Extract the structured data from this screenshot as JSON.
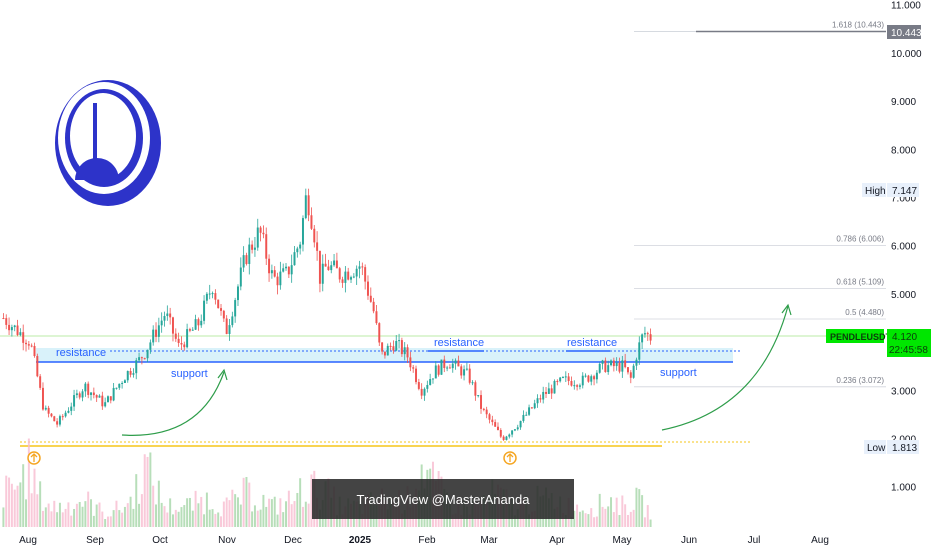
{
  "chart_data": {
    "type": "candlestick",
    "symbol": "PENDLEUSDT",
    "last_price": "4.120",
    "countdown": "22:45:58",
    "watermark": "TradingView @MasterAnanda",
    "y_axis": {
      "ticks": [
        "11.000",
        "10.000",
        "9.000",
        "8.000",
        "7.000",
        "6.000",
        "5.000",
        "4.000",
        "3.000",
        "2.000",
        "1.000"
      ],
      "range": [
        0,
        11.5
      ]
    },
    "x_axis": {
      "labels": [
        "Aug",
        "Sep",
        "Oct",
        "Nov",
        "Dec",
        "2025",
        "Feb",
        "Mar",
        "Apr",
        "May",
        "Jun",
        "Jul",
        "Aug"
      ]
    },
    "high": {
      "label": "High",
      "value": "7.147"
    },
    "low": {
      "label": "Low",
      "value": "1.813"
    },
    "fib_levels": [
      {
        "label": "1.618 (10.443)",
        "value": 10.443
      },
      {
        "label": "0.786 (6.006)",
        "value": 6.006
      },
      {
        "label": "0.618 (5.109)",
        "value": 5.109
      },
      {
        "label": "0.5 (4.480)",
        "value": 4.48
      },
      {
        "label": "0.236 (3.072)",
        "value": 3.072
      }
    ],
    "fib_price_tag": "10.443",
    "annotations": {
      "resistance": "resistance",
      "support": "support"
    },
    "price_path": [
      [
        0,
        4.5
      ],
      [
        4,
        4.0
      ],
      [
        6,
        2.6
      ],
      [
        8,
        2.3
      ],
      [
        10,
        2.7
      ],
      [
        12,
        3.1
      ],
      [
        15,
        2.7
      ],
      [
        18,
        3.3
      ],
      [
        20,
        3.6
      ],
      [
        21,
        3.8
      ],
      [
        24,
        4.6
      ],
      [
        26,
        3.9
      ],
      [
        29,
        4.4
      ],
      [
        31,
        5.2
      ],
      [
        33,
        4.2
      ],
      [
        36,
        5.8
      ],
      [
        38,
        6.3
      ],
      [
        40,
        5.3
      ],
      [
        42,
        5.4
      ],
      [
        44,
        6.1
      ],
      [
        45,
        7.1
      ],
      [
        46,
        6.4
      ],
      [
        47,
        5.3
      ],
      [
        48,
        5.6
      ],
      [
        50,
        5.4
      ],
      [
        53,
        5.6
      ],
      [
        55,
        4.6
      ],
      [
        56,
        3.7
      ],
      [
        58,
        4.0
      ],
      [
        60,
        3.7
      ],
      [
        62,
        3.0
      ],
      [
        64,
        3.4
      ],
      [
        66,
        3.6
      ],
      [
        69,
        3.3
      ],
      [
        71,
        2.6
      ],
      [
        74,
        2.0
      ],
      [
        77,
        2.4
      ],
      [
        80,
        2.9
      ],
      [
        83,
        3.2
      ],
      [
        86,
        3.2
      ],
      [
        89,
        3.5
      ],
      [
        91,
        3.5
      ],
      [
        92,
        3.5
      ],
      [
        93,
        3.2
      ],
      [
        94,
        3.8
      ],
      [
        95,
        4.2
      ],
      [
        96,
        4.1
      ]
    ],
    "volume_profile": [
      [
        0,
        0.5
      ],
      [
        2,
        0.6
      ],
      [
        4,
        0.9
      ],
      [
        5,
        0.5
      ],
      [
        7,
        0.3
      ],
      [
        9,
        0.3
      ],
      [
        12,
        0.4
      ],
      [
        15,
        0.2
      ],
      [
        18,
        0.3
      ],
      [
        19,
        0.4
      ],
      [
        21,
        0.9
      ],
      [
        24,
        0.3
      ],
      [
        27,
        0.3
      ],
      [
        30,
        0.4
      ],
      [
        33,
        0.3
      ],
      [
        36,
        0.5
      ],
      [
        40,
        0.3
      ],
      [
        43,
        0.4
      ],
      [
        45,
        0.6
      ],
      [
        48,
        0.5
      ],
      [
        50,
        0.3
      ],
      [
        53,
        0.3
      ],
      [
        56,
        0.4
      ],
      [
        60,
        0.4
      ],
      [
        62,
        0.9
      ],
      [
        64,
        0.6
      ],
      [
        67,
        0.3
      ],
      [
        70,
        0.3
      ],
      [
        73,
        0.5
      ],
      [
        76,
        0.3
      ],
      [
        79,
        0.4
      ],
      [
        82,
        0.4
      ],
      [
        84,
        0.3
      ],
      [
        88,
        0.3
      ],
      [
        90,
        0.4
      ],
      [
        92,
        0.3
      ],
      [
        94,
        0.4
      ],
      [
        96,
        0.2
      ]
    ]
  },
  "colors": {
    "up": "#26a69a",
    "down": "#ef5350",
    "resistance_line": "#2962ff",
    "support_band": "#bfe9f7",
    "low_line": "#f5c518",
    "arrow": "#2e9d4a",
    "price_tag": "#00e600",
    "logo": "#2d33c9"
  }
}
